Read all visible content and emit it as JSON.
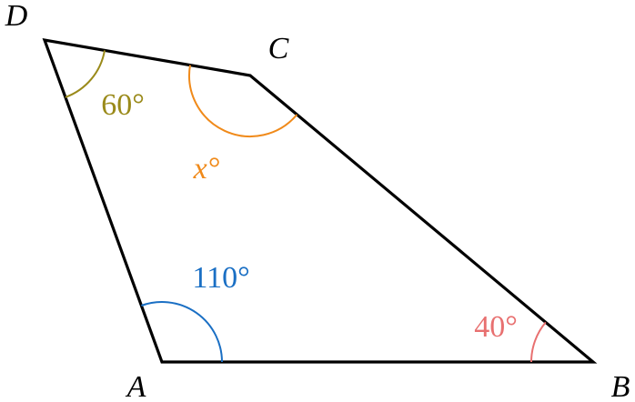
{
  "vertices": {
    "A": "A",
    "B": "B",
    "C": "C",
    "D": "D"
  },
  "angles": {
    "A": "110°",
    "B": "40°",
    "C": "x°",
    "D": "60°"
  }
}
